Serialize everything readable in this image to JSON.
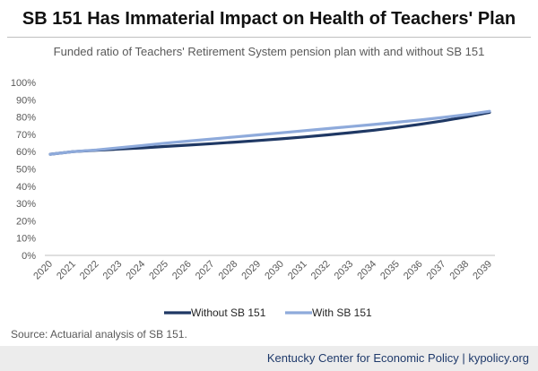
{
  "title": "SB 151 Has Immaterial Impact on Health of Teachers' Plan",
  "subtitle": "Funded ratio of Teachers' Retirement System pension plan with and without SB 151",
  "source": "Source: Actuarial analysis of SB 151.",
  "footer": "Kentucky Center for Economic Policy | kypolicy.org",
  "colors": {
    "without": "#1f3864",
    "with": "#8eaadb",
    "axis": "#bfbfbf",
    "text": "#595959"
  },
  "chart_data": {
    "type": "line",
    "title": "SB 151 Has Immaterial Impact on Health of Teachers' Plan",
    "subtitle": "Funded ratio of Teachers' Retirement System pension plan with and without SB 151",
    "xlabel": "",
    "ylabel": "",
    "x": [
      "2020",
      "2021",
      "2022",
      "2023",
      "2024",
      "2025",
      "2026",
      "2027",
      "2028",
      "2029",
      "2030",
      "2031",
      "2032",
      "2033",
      "2034",
      "2035",
      "2036",
      "2037",
      "2038",
      "2039"
    ],
    "y_ticks": [
      "0%",
      "10%",
      "20%",
      "30%",
      "40%",
      "50%",
      "60%",
      "70%",
      "80%",
      "90%",
      "100%"
    ],
    "ylim": [
      0,
      100
    ],
    "grid": false,
    "legend_position": "bottom",
    "series": [
      {
        "name": "Without SB 151",
        "values": [
          58.5,
          60.0,
          60.8,
          61.5,
          62.2,
          63.0,
          63.8,
          64.6,
          65.5,
          66.4,
          67.4,
          68.5,
          69.7,
          71.0,
          72.4,
          74.0,
          75.8,
          77.8,
          80.1,
          82.7
        ]
      },
      {
        "name": "With SB 151",
        "values": [
          58.5,
          60.0,
          61.0,
          62.3,
          63.6,
          64.9,
          66.1,
          67.3,
          68.5,
          69.7,
          70.9,
          72.1,
          73.3,
          74.5,
          75.7,
          77.0,
          78.3,
          79.8,
          81.4,
          83.3
        ]
      }
    ]
  }
}
